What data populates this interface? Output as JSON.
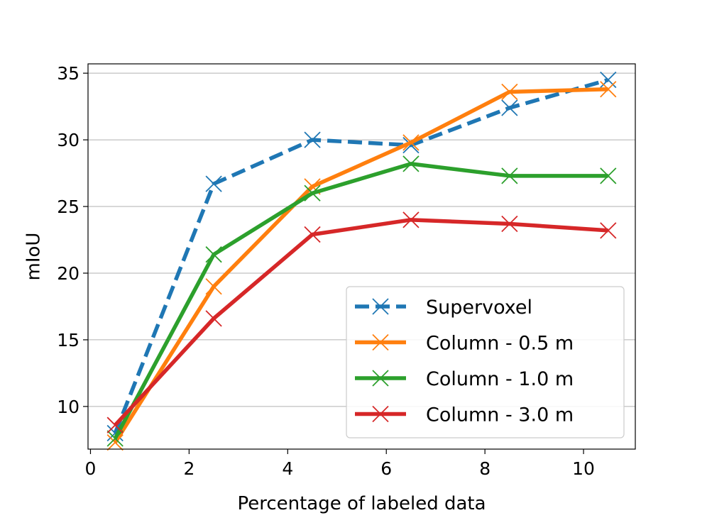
{
  "chart_data": {
    "type": "line",
    "title": "",
    "xlabel": "Percentage of labeled data",
    "ylabel": "mIoU",
    "xlim": [
      -0.05,
      11.05
    ],
    "ylim": [
      6.8,
      35.7
    ],
    "xticks": [
      0,
      2,
      4,
      6,
      8,
      10
    ],
    "yticks": [
      10,
      15,
      20,
      25,
      30,
      35
    ],
    "grid": "horizontal",
    "legend_position": "lower-right",
    "series": [
      {
        "name": "Supervoxel",
        "color": "#1f77b4",
        "dashed": true,
        "marker": "x",
        "x": [
          0.5,
          2.5,
          4.5,
          6.5,
          8.5,
          10.5
        ],
        "y": [
          8.0,
          26.7,
          30.0,
          29.6,
          32.4,
          34.5
        ]
      },
      {
        "name": "Column - 0.5 m",
        "color": "#ff7f0e",
        "dashed": false,
        "marker": "x",
        "x": [
          0.5,
          2.5,
          4.5,
          6.5,
          8.5,
          10.5
        ],
        "y": [
          7.3,
          19.0,
          26.5,
          29.8,
          33.6,
          33.8
        ]
      },
      {
        "name": "Column - 1.0 m",
        "color": "#2ca02c",
        "dashed": false,
        "marker": "x",
        "x": [
          0.5,
          2.5,
          4.5,
          6.5,
          8.5,
          10.5
        ],
        "y": [
          7.6,
          21.4,
          26.0,
          28.2,
          27.3,
          27.3
        ]
      },
      {
        "name": "Column - 3.0 m",
        "color": "#d62728",
        "dashed": false,
        "marker": "x",
        "x": [
          0.5,
          2.5,
          4.5,
          6.5,
          8.5,
          10.5
        ],
        "y": [
          8.6,
          16.6,
          22.9,
          24.0,
          23.7,
          23.2
        ]
      }
    ]
  }
}
